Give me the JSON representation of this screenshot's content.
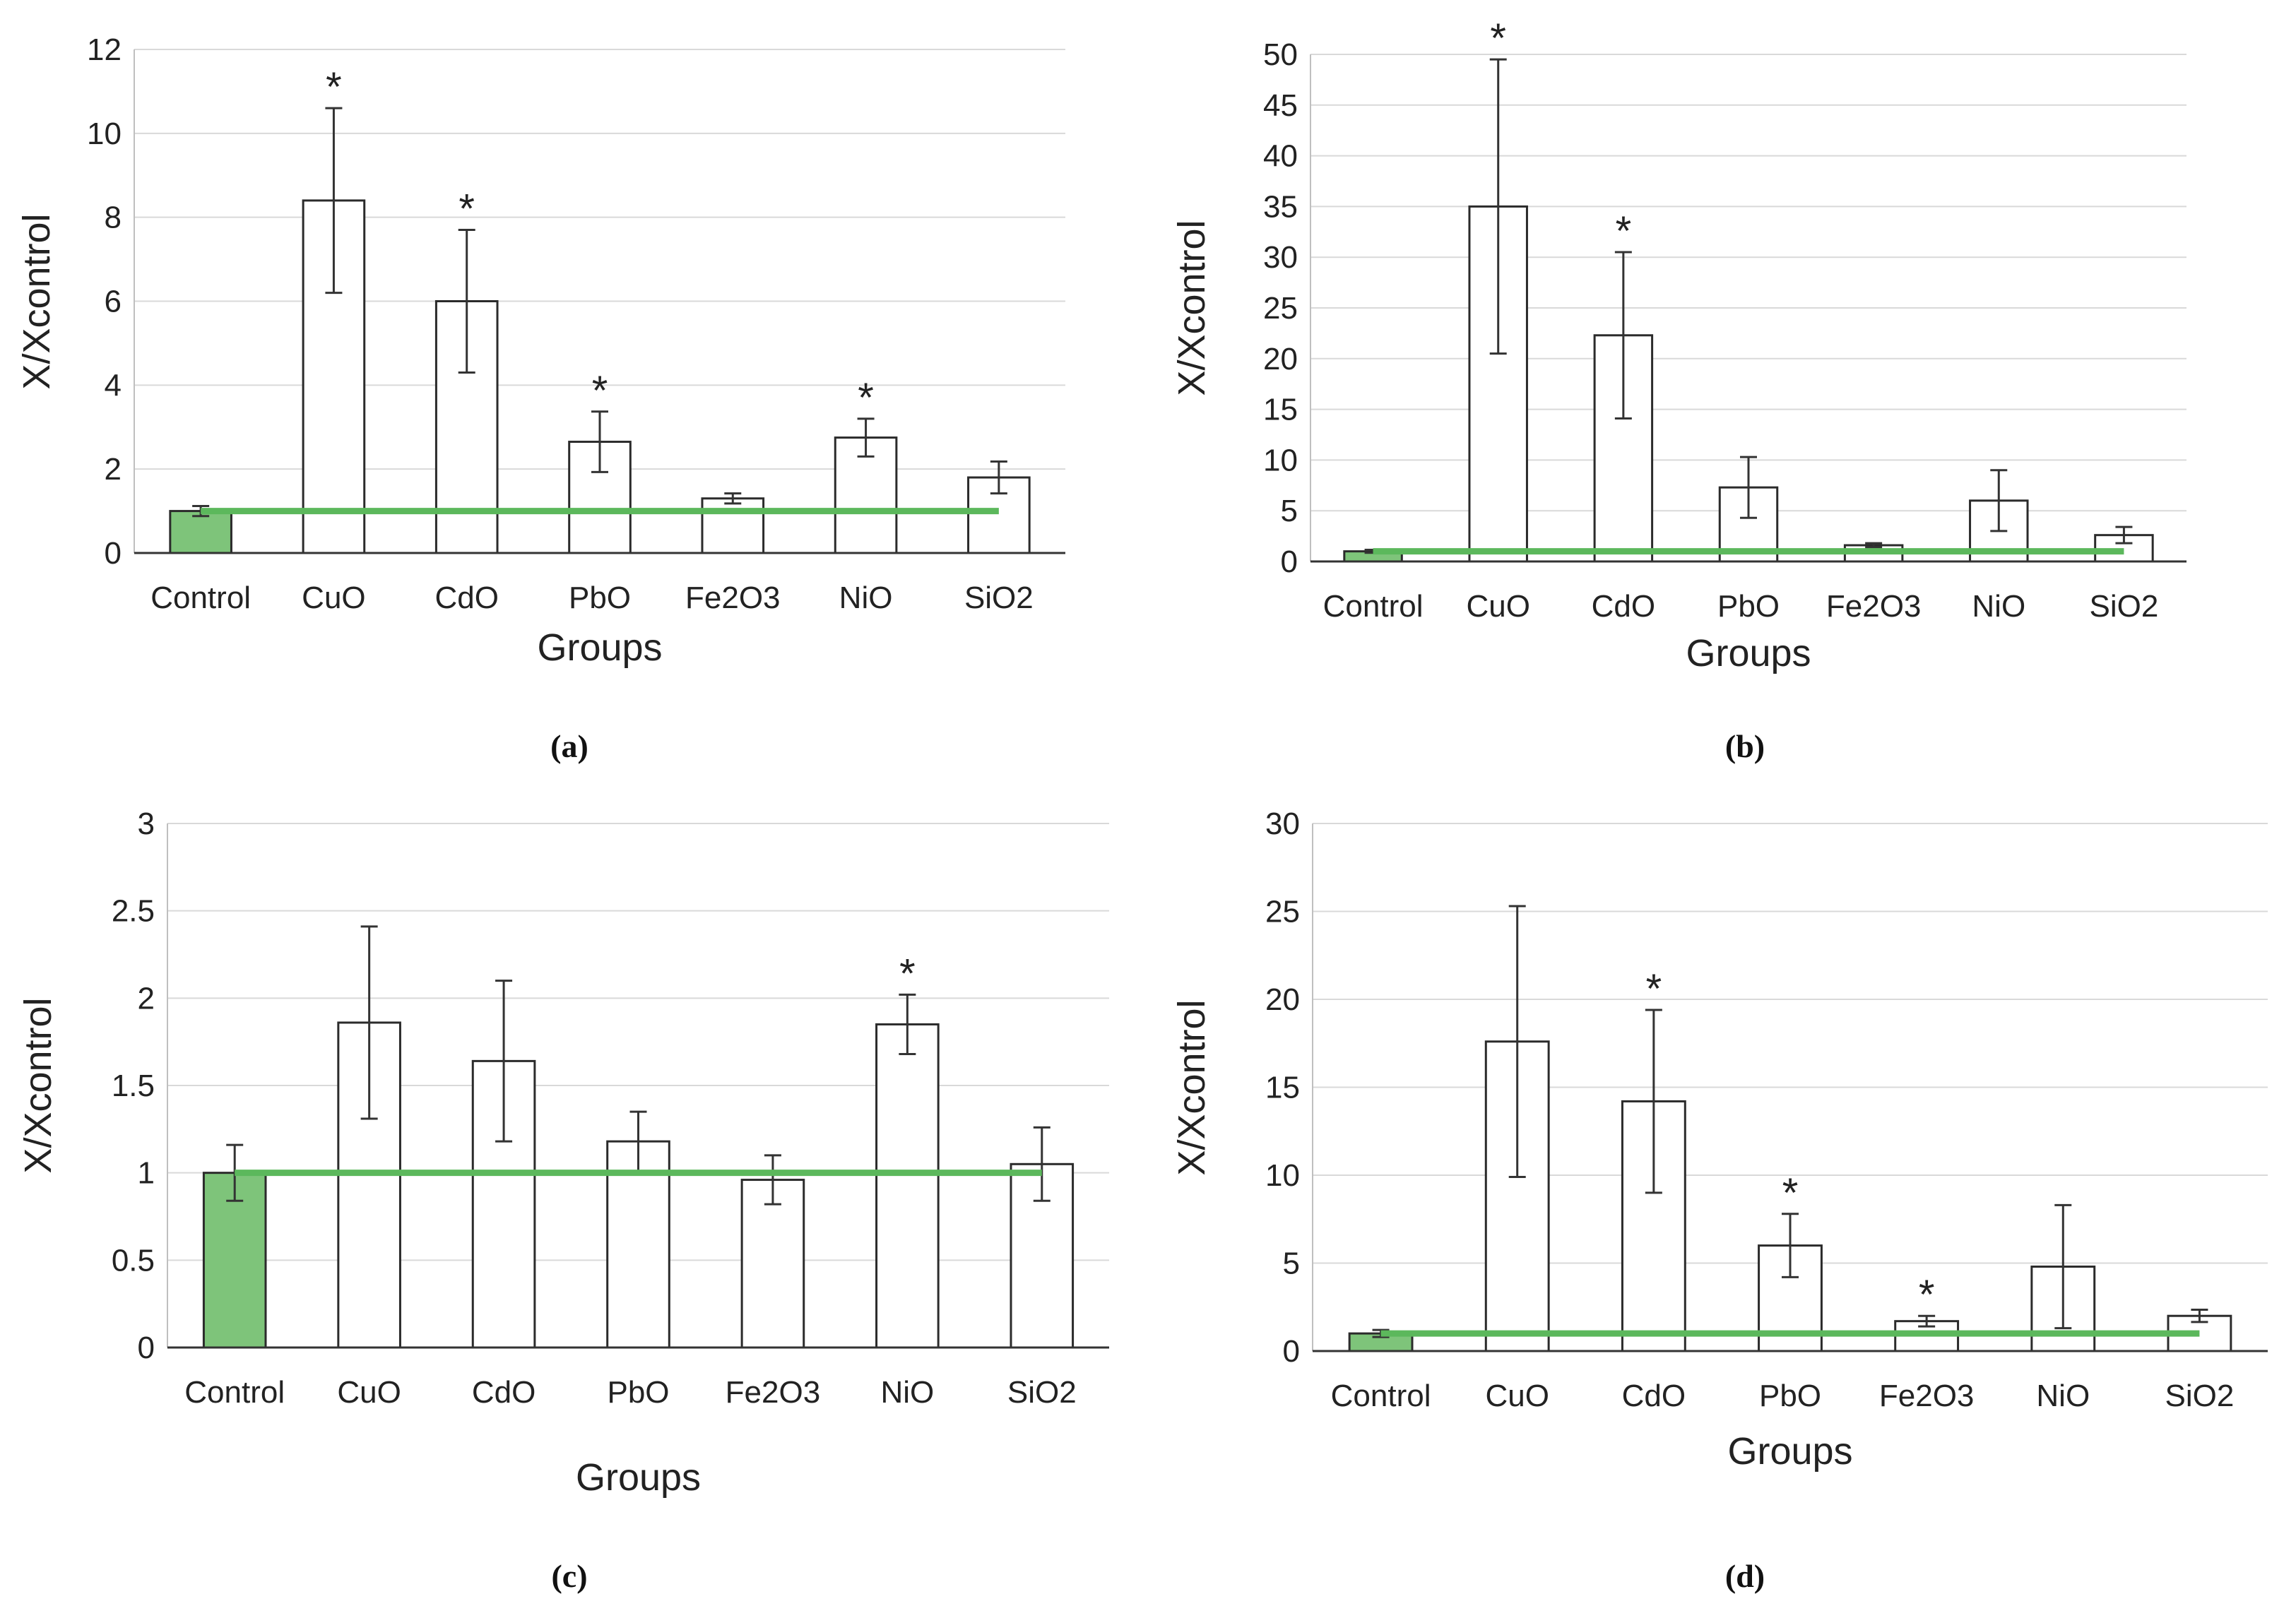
{
  "chart_data": [
    {
      "type": "bar",
      "caption": "(a)",
      "categories": [
        "Control",
        "CuO",
        "CdO",
        "PbO",
        "Fe2O3",
        "NiO",
        "SiO2"
      ],
      "values": [
        1.0,
        8.4,
        6.0,
        2.65,
        1.3,
        2.75,
        1.8
      ],
      "error": [
        0.12,
        2.2,
        1.7,
        0.72,
        0.12,
        0.45,
        0.38
      ],
      "significant": [
        false,
        true,
        true,
        true,
        false,
        true,
        false
      ],
      "reference_line": 1,
      "xlabel": "Groups",
      "ylabel": "X/Xcontrol",
      "ylim": [
        0,
        12
      ],
      "yticks": [
        0,
        2,
        4,
        6,
        8,
        10,
        12
      ],
      "grid": true,
      "colors": {
        "control": "#7ec47a",
        "bars": "#ffffff",
        "reference": "#5cb85c"
      }
    },
    {
      "type": "bar",
      "caption": "(b)",
      "categories": [
        "Control",
        "CuO",
        "CdO",
        "PbO",
        "Fe2O3",
        "NiO",
        "SiO2"
      ],
      "values": [
        1.0,
        35.0,
        22.3,
        7.3,
        1.6,
        6.0,
        2.6
      ],
      "error": [
        0.15,
        14.5,
        8.2,
        3.0,
        0.2,
        3.0,
        0.8
      ],
      "significant": [
        false,
        true,
        true,
        false,
        false,
        false,
        false
      ],
      "reference_line": 1,
      "xlabel": "Groups",
      "ylabel": "X/Xcontrol",
      "ylim": [
        0,
        50
      ],
      "yticks": [
        0,
        5,
        10,
        15,
        20,
        25,
        30,
        35,
        40,
        45,
        50
      ],
      "grid": true,
      "colors": {
        "control": "#7ec47a",
        "bars": "#ffffff",
        "reference": "#5cb85c"
      }
    },
    {
      "type": "bar",
      "caption": "(c)",
      "categories": [
        "Control",
        "CuO",
        "CdO",
        "PbO",
        "Fe2O3",
        "NiO",
        "SiO2"
      ],
      "values": [
        1.0,
        1.86,
        1.64,
        1.18,
        0.96,
        1.85,
        1.05
      ],
      "error": [
        0.16,
        0.55,
        0.46,
        0.17,
        0.14,
        0.17,
        0.21
      ],
      "significant": [
        false,
        false,
        false,
        false,
        false,
        true,
        false
      ],
      "reference_line": 1,
      "xlabel": "Groups",
      "ylabel": "X/Xcontrol",
      "ylim": [
        0,
        3
      ],
      "yticks": [
        0,
        0.5,
        1,
        1.5,
        2,
        2.5,
        3
      ],
      "grid": true,
      "colors": {
        "control": "#7ec47a",
        "bars": "#ffffff",
        "reference": "#5cb85c"
      }
    },
    {
      "type": "bar",
      "caption": "(d)",
      "categories": [
        "Control",
        "CuO",
        "CdO",
        "PbO",
        "Fe2O3",
        "NiO",
        "SiO2"
      ],
      "values": [
        1.0,
        17.6,
        14.2,
        6.0,
        1.7,
        4.8,
        2.0
      ],
      "error": [
        0.2,
        7.7,
        5.2,
        1.8,
        0.3,
        3.5,
        0.35
      ],
      "significant": [
        false,
        false,
        true,
        true,
        true,
        false,
        false
      ],
      "reference_line": 1,
      "xlabel": "Groups",
      "ylabel": "X/Xcontrol",
      "ylim": [
        0,
        30
      ],
      "yticks": [
        0,
        5,
        10,
        15,
        20,
        25,
        30
      ],
      "grid": true,
      "colors": {
        "control": "#7ec47a",
        "bars": "#ffffff",
        "reference": "#5cb85c"
      }
    }
  ]
}
